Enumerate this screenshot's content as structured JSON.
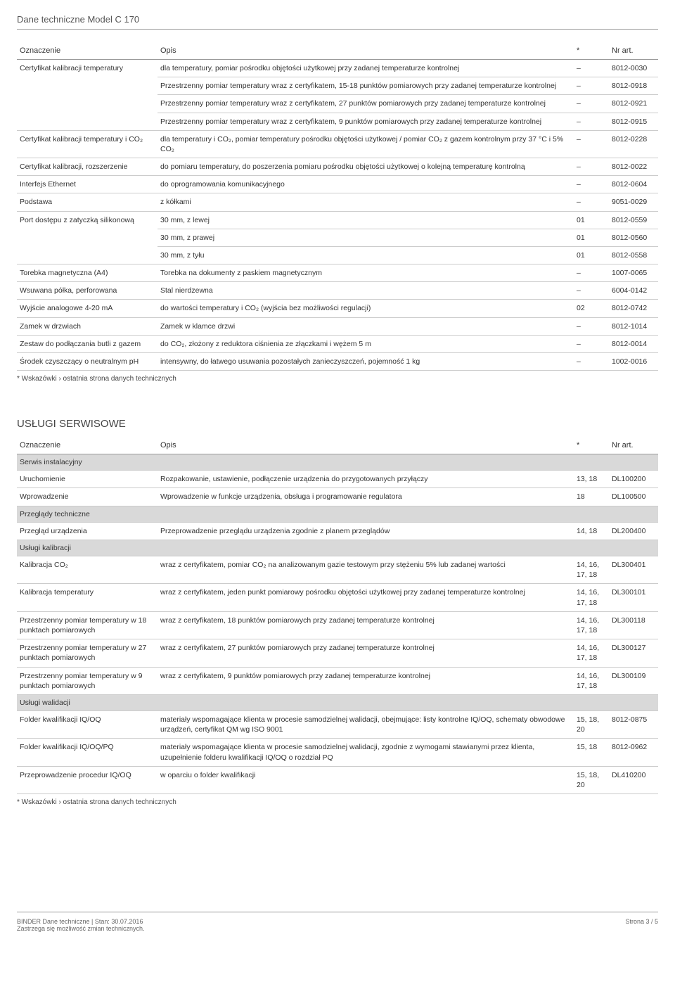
{
  "page_title": "Dane techniczne Model C 170",
  "table1": {
    "headers": {
      "oz": "Oznaczenie",
      "op": "Opis",
      "star": "*",
      "nr": "Nr art."
    },
    "rows": [
      {
        "oz": "",
        "op": "dla temperatury, pomiar pośrodku objętości użytkowej przy zadanej temperaturze kontrolnej",
        "star": "–",
        "nr": "8012-0030",
        "rowspan_start": true,
        "rowspan_label": "Certyfikat kalibracji temperatury",
        "rowspan": 4
      },
      {
        "op": "Przestrzenny pomiar temperatury wraz z certyfikatem, 15-18 punktów pomiarowych przy zadanej temperaturze kontrolnej",
        "star": "–",
        "nr": "8012-0918"
      },
      {
        "op": "Przestrzenny pomiar temperatury wraz z certyfikatem, 27 punktów pomiarowych przy zadanej temperaturze kontrolnej",
        "star": "–",
        "nr": "8012-0921"
      },
      {
        "op": "Przestrzenny pomiar temperatury wraz z certyfikatem, 9 punktów pomiarowych przy zadanej temperaturze kontrolnej",
        "star": "–",
        "nr": "8012-0915"
      },
      {
        "oz": "Certyfikat kalibracji temperatury i CO₂",
        "op": "dla temperatury i CO₂, pomiar temperatury pośrodku objętości użytkowej / pomiar CO₂ z gazem kontrolnym przy 37 °C i 5% CO₂",
        "star": "–",
        "nr": "8012-0228"
      },
      {
        "oz": "Certyfikat kalibracji, rozszerzenie",
        "op": "do pomiaru temperatury, do poszerzenia pomiaru pośrodku objętości użytkowej o kolejną temperaturę kontrolną",
        "star": "–",
        "nr": "8012-0022"
      },
      {
        "oz": "Interfejs Ethernet",
        "op": "do oprogramowania komunikacyjnego",
        "star": "–",
        "nr": "8012-0604"
      },
      {
        "oz": "Podstawa",
        "op": "z kółkami",
        "star": "–",
        "nr": "9051-0029"
      },
      {
        "oz": "",
        "op": "30 mm, z lewej",
        "star": "01",
        "nr": "8012-0559",
        "rowspan_start": true,
        "rowspan_label": "Port dostępu z zatyczką silikonową",
        "rowspan": 3
      },
      {
        "op": "30 mm, z prawej",
        "star": "01",
        "nr": "8012-0560"
      },
      {
        "op": "30 mm, z tyłu",
        "star": "01",
        "nr": "8012-0558"
      },
      {
        "oz": "Torebka magnetyczna (A4)",
        "op": "Torebka na dokumenty z paskiem magnetycznym",
        "star": "–",
        "nr": "1007-0065"
      },
      {
        "oz": "Wsuwana półka, perforowana",
        "op": "Stal nierdzewna",
        "star": "–",
        "nr": "6004-0142"
      },
      {
        "oz": "Wyjście analogowe 4-20 mA",
        "op": "do wartości temperatury i CO₂ (wyjścia bez możliwości regulacji)",
        "star": "02",
        "nr": "8012-0742"
      },
      {
        "oz": "Zamek w drzwiach",
        "op": "Zamek w klamce drzwi",
        "star": "–",
        "nr": "8012-1014"
      },
      {
        "oz": "Zestaw do podłączania butli z gazem",
        "op": "do CO₂, złożony z reduktora ciśnienia ze złączkami i wężem 5 m",
        "star": "–",
        "nr": "8012-0014"
      },
      {
        "oz": "Środek czyszczący o neutralnym pH",
        "op": "intensywny, do łatwego usuwania pozostałych zanieczyszczeń, pojemność 1 kg",
        "star": "–",
        "nr": "1002-0016"
      }
    ]
  },
  "footnote1": "* Wskazówki › ostatnia strona danych technicznych",
  "section2_title": "USŁUGI SERWISOWE",
  "table2": {
    "headers": {
      "oz": "Oznaczenie",
      "op": "Opis",
      "star": "*",
      "nr": "Nr art."
    },
    "rows": [
      {
        "section": true,
        "label": "Serwis instalacyjny"
      },
      {
        "oz": "Uruchomienie",
        "op": "Rozpakowanie, ustawienie, podłączenie urządzenia do przygotowanych przyłączy",
        "star": "13, 18",
        "nr": "DL100200"
      },
      {
        "oz": "Wprowadzenie",
        "op": "Wprowadzenie w funkcje urządzenia, obsługa i programowanie regulatora",
        "star": "18",
        "nr": "DL100500"
      },
      {
        "section": true,
        "label": "Przeglądy techniczne"
      },
      {
        "oz": "Przegląd urządzenia",
        "op": "Przeprowadzenie przeglądu urządzenia zgodnie z planem przeglądów",
        "star": "14, 18",
        "nr": "DL200400"
      },
      {
        "section": true,
        "label": "Usługi kalibracji"
      },
      {
        "oz": "Kalibracja CO₂",
        "op": "wraz z certyfikatem, pomiar CO₂ na analizowanym gazie testowym przy stężeniu 5% lub zadanej wartości",
        "star": "14, 16, 17, 18",
        "nr": "DL300401"
      },
      {
        "oz": "Kalibracja temperatury",
        "op": "wraz z certyfikatem, jeden punkt pomiarowy pośrodku objętości użytkowej przy zadanej temperaturze kontrolnej",
        "star": "14, 16, 17, 18",
        "nr": "DL300101"
      },
      {
        "oz": "Przestrzenny pomiar temperatury w 18 punktach pomiarowych",
        "op": "wraz z certyfikatem, 18 punktów pomiarowych przy zadanej temperaturze kontrolnej",
        "star": "14, 16, 17, 18",
        "nr": "DL300118"
      },
      {
        "oz": "Przestrzenny pomiar temperatury w 27 punktach pomiarowych",
        "op": "wraz z certyfikatem, 27 punktów pomiarowych przy zadanej temperaturze kontrolnej",
        "star": "14, 16, 17, 18",
        "nr": "DL300127"
      },
      {
        "oz": "Przestrzenny pomiar temperatury w 9 punktach pomiarowych",
        "op": "wraz z certyfikatem, 9 punktów pomiarowych przy zadanej temperaturze kontrolnej",
        "star": "14, 16, 17, 18",
        "nr": "DL300109"
      },
      {
        "section": true,
        "label": "Usługi walidacji"
      },
      {
        "oz": "Folder kwalifikacji IQ/OQ",
        "op": "materiały wspomagające klienta w procesie samodzielnej walidacji, obejmujące: listy kontrolne IQ/OQ, schematy obwodowe urządzeń, certyfikat QM wg ISO 9001",
        "star": "15, 18, 20",
        "nr": "8012-0875"
      },
      {
        "oz": "Folder kwalifikacji IQ/OQ/PQ",
        "op": "materiały wspomagające klienta w procesie samodzielnej walidacji, zgodnie z wymogami stawianymi przez klienta, uzupełnienie folderu kwalifikacji IQ/OQ o rozdział PQ",
        "star": "15, 18",
        "nr": "8012-0962"
      },
      {
        "oz": "Przeprowadzenie procedur IQ/OQ",
        "op": "w oparciu o folder kwalifikacji",
        "star": "15, 18, 20",
        "nr": "DL410200"
      }
    ]
  },
  "footnote2": "* Wskazówki › ostatnia strona danych technicznych",
  "footer_left1": "BINDER Dane techniczne | Stan: 30.07.2016",
  "footer_left2": "Zastrzega się możliwość zmian technicznych.",
  "footer_right": "Strona 3 / 5"
}
